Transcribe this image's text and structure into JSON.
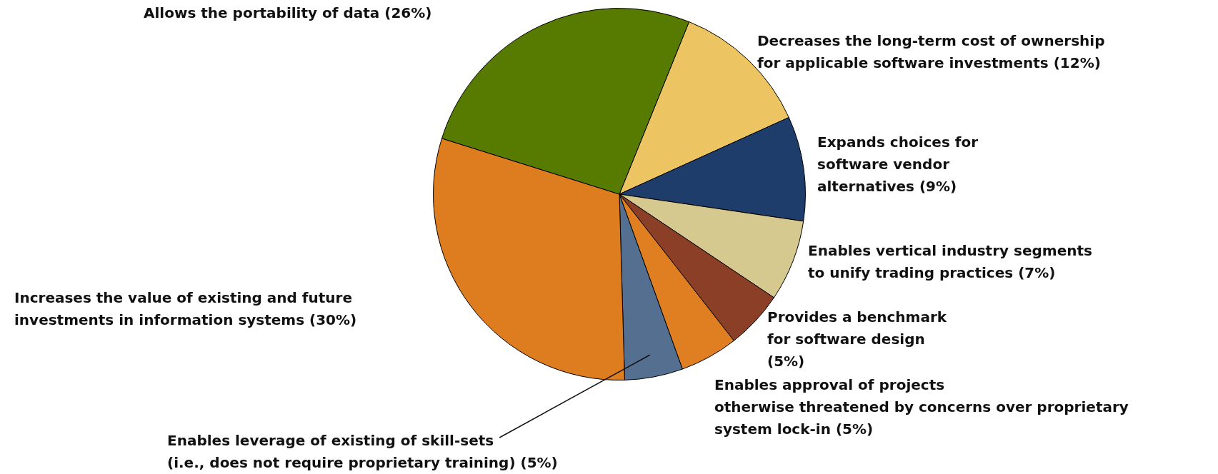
{
  "chart_data": {
    "type": "pie",
    "categories": [
      "Decreases the long-term cost of ownership for applicable software investments (12%)",
      "Expands choices for software vendor alternatives (9%)",
      "Enables vertical industry segments to unify trading practices (7%)",
      "Provides a benchmark for software design (5%)",
      "Enables approval of projects otherwise threatened by concerns over proprietary system lock-in (5%)",
      "Enables leverage of existing of skill-sets (i.e., does not require proprietary training) (5%)",
      "Increases the value of existing and future investments in information systems (30%)",
      "Allows the portability of data (26%)"
    ],
    "values": [
      12,
      9,
      7,
      5,
      5,
      5,
      30,
      26
    ],
    "colors": [
      "#ecc462",
      "#1f3d6b",
      "#d6c98f",
      "#8b3f27",
      "#e07f22",
      "#546f8f",
      "#de7d1f",
      "#577a00"
    ]
  }
}
